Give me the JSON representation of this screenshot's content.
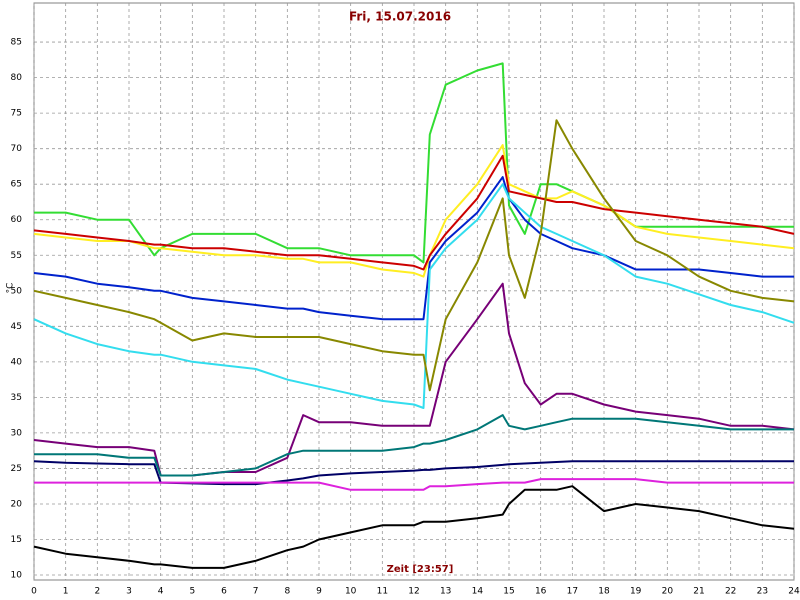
{
  "chart_data": {
    "type": "line",
    "title": "Fri, 15.07.2016",
    "y_label": "°C",
    "x_label": "Zeit [23:57]",
    "x": [
      0,
      1,
      2,
      3,
      3.8,
      4,
      5,
      6,
      7,
      8,
      8.5,
      9,
      10,
      11,
      12,
      12.3,
      12.5,
      13,
      14,
      14.8,
      15,
      15.5,
      16,
      16.5,
      17,
      18,
      19,
      20,
      21,
      22,
      23,
      24
    ],
    "xlim": [
      0,
      24
    ],
    "xticks": [
      0,
      1,
      2,
      3,
      4,
      5,
      6,
      7,
      8,
      9,
      10,
      11,
      12,
      13,
      14,
      15,
      16,
      17,
      18,
      19,
      20,
      21,
      22,
      23,
      24
    ],
    "ylim": [
      9.3,
      90.5
    ],
    "yticks": [
      10,
      15,
      20,
      25,
      30,
      35,
      40,
      45,
      50,
      55,
      60,
      65,
      70,
      75,
      80,
      85
    ],
    "grid": true,
    "series": [
      {
        "color": "#33dd33",
        "values": [
          61,
          61,
          60,
          60,
          55,
          56,
          58,
          58,
          58,
          56,
          56,
          56,
          55,
          55,
          55,
          54,
          72,
          79,
          81,
          82,
          62,
          58,
          65,
          65,
          64,
          62,
          59,
          59,
          59,
          59,
          59,
          59
        ]
      },
      {
        "color": "#ffee22",
        "values": [
          58,
          57.5,
          57,
          57,
          56,
          56,
          55.5,
          55,
          55,
          54.5,
          54.5,
          54,
          54,
          53,
          52.5,
          52,
          55,
          60,
          65,
          70.5,
          65,
          64,
          63,
          63,
          64,
          62,
          59,
          58,
          57.5,
          57,
          56.5,
          56
        ]
      },
      {
        "color": "#cc0000",
        "values": [
          58.5,
          58,
          57.5,
          57,
          56.5,
          56.5,
          56,
          56,
          55.5,
          55,
          55,
          55,
          54.5,
          54,
          53.5,
          53,
          55,
          58,
          63,
          69,
          64,
          63.5,
          63,
          62.5,
          62.5,
          61.5,
          61,
          60.5,
          60,
          59.5,
          59,
          58
        ]
      },
      {
        "color": "#0022cc",
        "values": [
          52.5,
          52,
          51,
          50.5,
          50,
          50,
          49,
          48.5,
          48,
          47.5,
          47.5,
          47,
          46.5,
          46,
          46,
          46,
          54,
          57,
          61,
          66,
          63,
          60,
          58,
          57,
          56,
          55,
          53,
          53,
          53,
          52.5,
          52,
          52
        ]
      },
      {
        "color": "#33ddee",
        "values": [
          46,
          44,
          42.5,
          41.5,
          41,
          41,
          40,
          39.5,
          39,
          37.5,
          37,
          36.5,
          35.5,
          34.5,
          34,
          33.5,
          53,
          56,
          60,
          65,
          63,
          61,
          59,
          58,
          57,
          55,
          52,
          51,
          49.5,
          48,
          47,
          45.5
        ]
      },
      {
        "color": "#888800",
        "values": [
          50,
          49,
          48,
          47,
          46,
          45.5,
          43,
          44,
          43.5,
          43.5,
          43.5,
          43.5,
          42.5,
          41.5,
          41,
          41,
          36,
          46,
          54,
          63,
          55,
          49,
          58,
          74,
          70,
          63,
          57,
          55,
          52,
          50,
          49,
          48.5
        ]
      },
      {
        "color": "#770077",
        "values": [
          29,
          28.5,
          28,
          28,
          27.5,
          24,
          24,
          24.5,
          24.5,
          26.5,
          32.5,
          31.5,
          31.5,
          31,
          31,
          31,
          31,
          40,
          46,
          51,
          44,
          37,
          34,
          35.5,
          35.5,
          34,
          33,
          32.5,
          32,
          31,
          31,
          30.5
        ]
      },
      {
        "color": "#007777",
        "values": [
          27,
          27,
          27,
          26.5,
          26.5,
          24,
          24,
          24.5,
          25,
          27,
          27.5,
          27.5,
          27.5,
          27.5,
          28,
          28.5,
          28.5,
          29,
          30.5,
          32.5,
          31,
          30.5,
          31,
          31.5,
          32,
          32,
          32,
          31.5,
          31,
          30.5,
          30.5,
          30.5
        ]
      },
      {
        "color": "#000066",
        "values": [
          26,
          25.8,
          25.7,
          25.6,
          25.6,
          23,
          22.9,
          22.8,
          22.8,
          23.3,
          23.6,
          24,
          24.3,
          24.5,
          24.7,
          24.8,
          24.8,
          25,
          25.2,
          25.5,
          25.6,
          25.7,
          25.8,
          25.9,
          26,
          26,
          26,
          26,
          26,
          26,
          26,
          26
        ]
      },
      {
        "color": "#dd22dd",
        "values": [
          23,
          23,
          23,
          23,
          23,
          23,
          23,
          23,
          23,
          23,
          23,
          23,
          22,
          22,
          22,
          22,
          22.5,
          22.5,
          22.8,
          23,
          23,
          23,
          23.5,
          23.5,
          23.5,
          23.5,
          23.5,
          23,
          23,
          23,
          23,
          23
        ]
      },
      {
        "color": "#000000",
        "values": [
          14,
          13,
          12.5,
          12,
          11.5,
          11.5,
          11,
          11,
          12,
          13.5,
          14,
          15,
          16,
          17,
          17,
          17.5,
          17.5,
          17.5,
          18,
          18.5,
          20,
          22,
          22,
          22,
          22.5,
          19,
          20,
          19.5,
          19,
          18,
          17,
          16.5
        ]
      }
    ]
  }
}
